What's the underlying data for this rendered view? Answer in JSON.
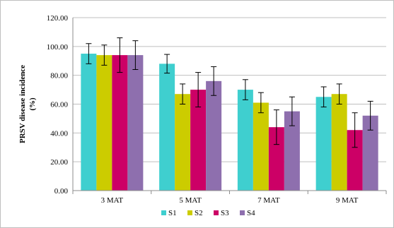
{
  "chart_data": {
    "type": "bar",
    "title": "",
    "xlabel": "",
    "ylabel": "PRSV disease incidence (%)",
    "ylabel_lines": [
      "PRSV disease incidence",
      "(%)"
    ],
    "ylim": [
      0,
      120
    ],
    "yticks": [
      "0.00",
      "20.00",
      "40.00",
      "60.00",
      "80.00",
      "100.00",
      "120.00"
    ],
    "ytick_values": [
      0,
      20,
      40,
      60,
      80,
      100,
      120
    ],
    "categories": [
      "3 MAT",
      "5 MAT",
      "7 MAT",
      "9 MAT"
    ],
    "grid": true,
    "legend_position": "bottom",
    "series": [
      {
        "name": "S1",
        "color": "#3fcfcf",
        "values": [
          95,
          88,
          70,
          65
        ],
        "errors": [
          7,
          6.5,
          7,
          7
        ]
      },
      {
        "name": "S2",
        "color": "#cccc00",
        "values": [
          94,
          67,
          61,
          67
        ],
        "errors": [
          7,
          7,
          7,
          7
        ]
      },
      {
        "name": "S3",
        "color": "#cc0066",
        "values": [
          94,
          70,
          44,
          42
        ],
        "errors": [
          12,
          12,
          12,
          12
        ]
      },
      {
        "name": "S4",
        "color": "#8e6fae",
        "values": [
          94,
          76,
          55,
          52
        ],
        "errors": [
          10,
          10,
          10,
          10
        ]
      }
    ]
  }
}
